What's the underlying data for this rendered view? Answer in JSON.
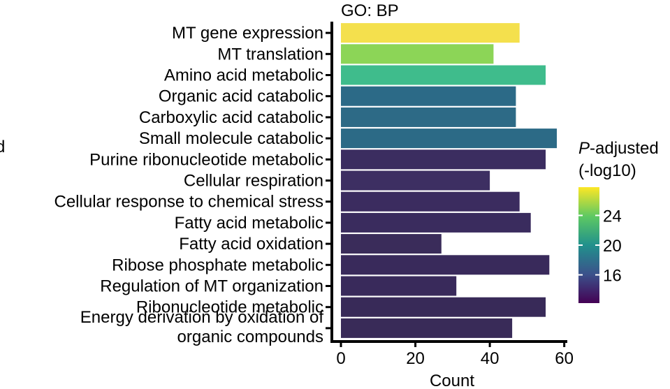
{
  "chart_data": {
    "type": "bar",
    "orientation": "horizontal",
    "panel_title": "GO: BP",
    "xlabel": "Count",
    "ylabel": "",
    "xlim": [
      0,
      60
    ],
    "xticks": [
      0,
      20,
      40,
      60
    ],
    "categories": [
      "MT gene expression",
      "MT translation",
      "Amino acid metabolic",
      "Organic acid catabolic",
      "Carboxylic acid catabolic",
      "Small molecule catabolic",
      "Purine ribonucleotide metabolic",
      "Cellular respiration",
      "Cellular response to chemical stress",
      "Fatty acid metabolic",
      "Fatty acid oxidation",
      "Ribose phosphate metabolic",
      "Regulation of MT organization",
      "Ribonucleotide metabolic",
      "Energy derivation by oxidation of organic compounds"
    ],
    "category_lines": [
      [
        "MT gene expression"
      ],
      [
        "MT translation"
      ],
      [
        "Amino acid metabolic"
      ],
      [
        "Organic acid catabolic"
      ],
      [
        "Carboxylic acid catabolic"
      ],
      [
        "Small molecule catabolic"
      ],
      [
        "Purine ribonucleotide metabolic"
      ],
      [
        "Cellular respiration"
      ],
      [
        "Cellular response to chemical stress"
      ],
      [
        "Fatty acid metabolic"
      ],
      [
        "Fatty acid oxidation"
      ],
      [
        "Ribose phosphate metabolic"
      ],
      [
        "Regulation of MT organization"
      ],
      [
        "Ribonucleotide metabolic"
      ],
      [
        "Energy derivation by oxidation of",
        "organic compounds"
      ]
    ],
    "values": [
      48,
      41,
      55,
      47,
      47,
      58,
      55,
      40,
      48,
      51,
      27,
      56,
      31,
      55,
      46
    ],
    "color_values": [
      26.8,
      24.2,
      21.5,
      18.0,
      18.0,
      17.8,
      13.5,
      13.5,
      13.5,
      13.5,
      13.2,
      13.2,
      13.2,
      13.0,
      13.0
    ],
    "colors": [
      "#f4e04d",
      "#8cd557",
      "#3fbc8c",
      "#2c6a87",
      "#2d6a86",
      "#2c6a86",
      "#3b2d60",
      "#3d2f62",
      "#3b2c5f",
      "#3a2c5e",
      "#3a2c5a",
      "#392a5b",
      "#392a5b",
      "#382a58",
      "#392b58"
    ],
    "colorbar": {
      "title_italic": "P",
      "title_rest": "-adjusted",
      "title_line2": "(-log10)",
      "range": [
        12.2,
        27.8
      ],
      "ticks": [
        16,
        20,
        24
      ],
      "stops": [
        "#fde725",
        "#5ec962",
        "#21918c",
        "#3b528b",
        "#440154"
      ]
    },
    "truncated_left_text": "d"
  }
}
